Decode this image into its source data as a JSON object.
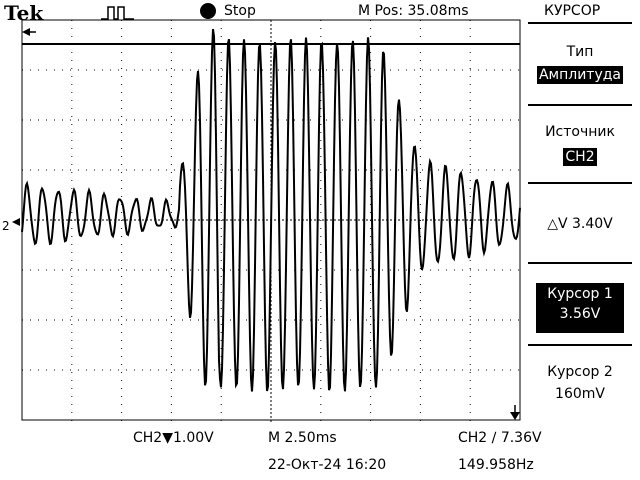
{
  "header": {
    "brand": "Tek",
    "run_state": "Stop",
    "trigger_icon": "trigger-pulse-icon",
    "position": "M Pos: 35.08ms",
    "menu_title": "КУРСОР"
  },
  "menu": {
    "type_label": "Тип",
    "type_value": "Амплитуда",
    "source_label": "Источник",
    "source_value": "CH2",
    "delta": "△V 3.40V",
    "cursor1_label": "Курсор 1",
    "cursor1_value": "3.56V",
    "cursor2_label": "Курсор 2",
    "cursor2_value": "160mV"
  },
  "footer": {
    "ch_scale": "CH2▼1.00V",
    "timebase": "M 2.50ms",
    "trigger": "CH2 ∕ 7.36V",
    "datetime": "22-Окт-24 16:20",
    "frequency": "149.958Hz"
  },
  "screen": {
    "channel_marker": "2",
    "trace_color": "#000000",
    "grid_color": "#000000"
  }
}
